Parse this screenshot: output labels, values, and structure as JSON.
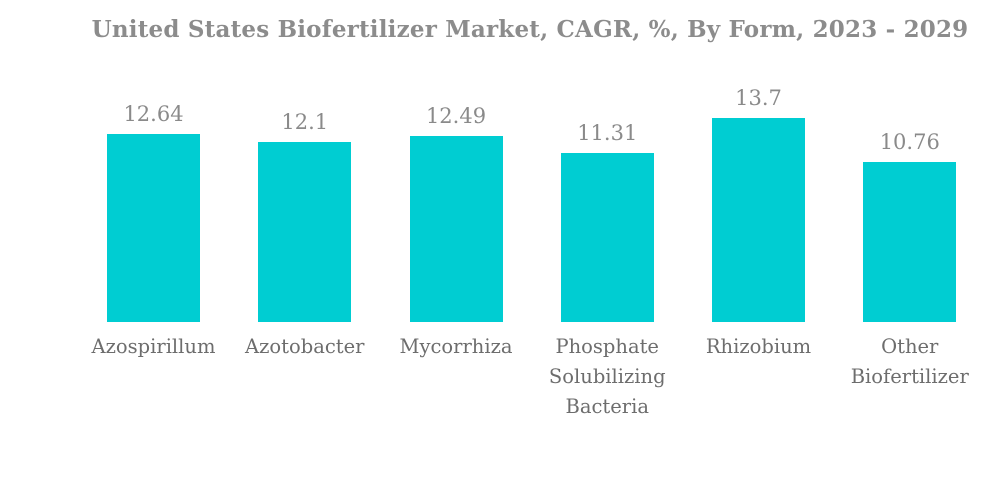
{
  "title": "United States Biofertilizer Market, CAGR, %, By Form, 2023 - 2029",
  "colors": {
    "bar": "#00cdd2",
    "title_text": "#8c8c8c",
    "value_label_text": "#8a8a8a",
    "category_label_text": "#6d6d6d",
    "background": "#ffffff"
  },
  "chart_data": {
    "type": "bar",
    "title": "United States Biofertilizer Market, CAGR, %, By Form, 2023 - 2029",
    "categories": [
      "Azospirillum",
      "Azotobacter",
      "Mycorrhiza",
      "Phosphate Solubilizing Bacteria",
      "Rhizobium",
      "Other Biofertilizer"
    ],
    "values": [
      12.64,
      12.1,
      12.49,
      11.31,
      13.7,
      10.76
    ],
    "value_labels": [
      "12.64",
      "12.1",
      "12.49",
      "11.31",
      "13.7",
      "10.76"
    ],
    "xlabel": "",
    "ylabel": "",
    "axes_visible": false,
    "grid": false,
    "legend": false,
    "value_labels_position": "above-bar"
  }
}
